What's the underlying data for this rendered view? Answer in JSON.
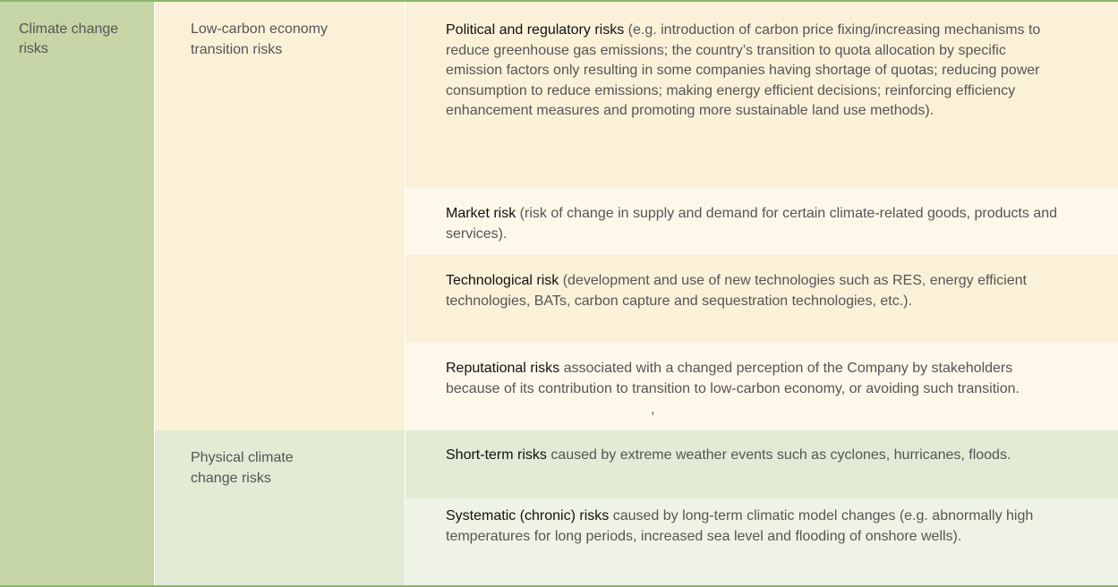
{
  "category": {
    "label": "Climate change risks"
  },
  "subcategories": [
    {
      "label": "Low-carbon economy transition risks"
    },
    {
      "label": "Physical climate change risks"
    }
  ],
  "risks": [
    {
      "title": "Political and regulatory risks",
      "description": " (e.g. introduction of carbon price fixing/increasing mechanisms to reduce greenhouse gas emissions; the country’s transition to quota allocation by specific emission factors only resulting in some companies having shortage of quotas; reducing power consumption to reduce emissions; making energy efficient decisions; reinforcing efficiency enhancement measures and promoting more sustainable land use methods)."
    },
    {
      "title": "Market risk",
      "description": " (risk of change in supply and demand for certain climate-related goods, products and services)."
    },
    {
      "title": "Technological risk",
      "description": " (development and use of new technologies such as RES, energy efficient technologies, BATs, carbon capture and sequestration technologies, etc.)."
    },
    {
      "title": "Reputational risks",
      "description": " associated with a changed perception of the Company by stakeholders because of its contribution to transition to low-carbon economy, or avoiding such transition."
    },
    {
      "title": "Short-term risks",
      "description": " caused by extreme weather events such as cyclones, hurricanes, floods."
    },
    {
      "title": "Systematic (chronic) risks",
      "description": " caused by long-term climatic model changes (e.g. abnormally high temperatures for long periods, increased sea level and flooding of onshore wells)."
    }
  ],
  "stray_mark": ","
}
